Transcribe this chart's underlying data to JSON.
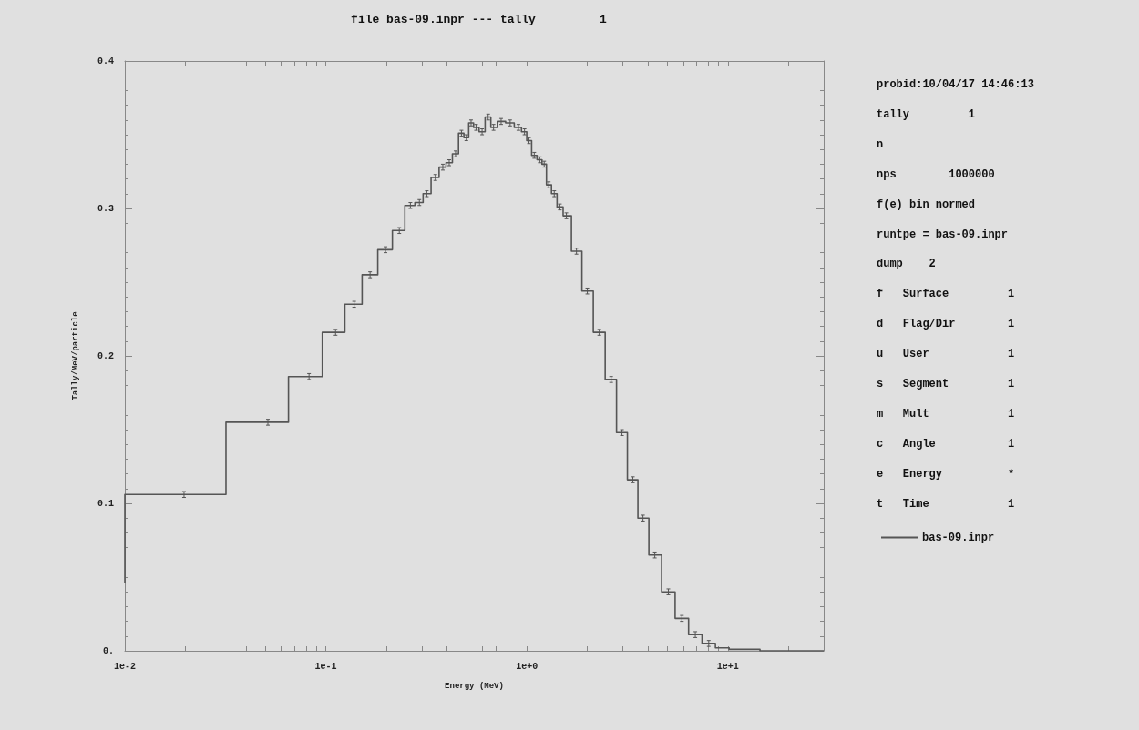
{
  "chart_data": {
    "type": "step",
    "title": "file bas-09.inpr --- tally         1",
    "xlabel": "Energy (MeV)",
    "ylabel": "Tally/MeV/particle",
    "log": "x",
    "legend": "right",
    "marker": "none",
    "line_style": "solid",
    "xlim": [
      0.01,
      30
    ],
    "xticks": [
      {
        "value": 0.01,
        "label": "1e-2"
      },
      {
        "value": 0.02,
        "label": null
      },
      {
        "value": 0.03,
        "label": null
      },
      {
        "value": 0.04,
        "label": null
      },
      {
        "value": 0.05,
        "label": null
      },
      {
        "value": 0.06,
        "label": null
      },
      {
        "value": 0.07,
        "label": null
      },
      {
        "value": 0.08,
        "label": null
      },
      {
        "value": 0.09,
        "label": null
      },
      {
        "value": 0.1,
        "label": "1e-1"
      },
      {
        "value": 0.2,
        "label": null
      },
      {
        "value": 0.3,
        "label": null
      },
      {
        "value": 0.4,
        "label": null
      },
      {
        "value": 0.5,
        "label": null
      },
      {
        "value": 0.6,
        "label": null
      },
      {
        "value": 0.7,
        "label": null
      },
      {
        "value": 0.8,
        "label": null
      },
      {
        "value": 0.9,
        "label": null
      },
      {
        "value": 1,
        "label": "1e+0"
      },
      {
        "value": 2,
        "label": null
      },
      {
        "value": 3,
        "label": null
      },
      {
        "value": 4,
        "label": null
      },
      {
        "value": 5,
        "label": null
      },
      {
        "value": 6,
        "label": null
      },
      {
        "value": 7,
        "label": null
      },
      {
        "value": 8,
        "label": null
      },
      {
        "value": 9,
        "label": null
      },
      {
        "value": 10,
        "label": "1e+1"
      },
      {
        "value": 20,
        "label": null
      }
    ],
    "ylim": [
      0,
      0.4
    ],
    "yticks": [
      {
        "value": 0,
        "label": "0."
      },
      0.1,
      0.2,
      0.3,
      0.4
    ],
    "series": [
      {
        "name": "bas-09.inpr",
        "color": "#555555",
        "x": [
          0.01,
          0.01,
          0.0197,
          0.0515,
          0.0825,
          0.1118,
          0.1383,
          0.166,
          0.198,
          0.232,
          0.2635,
          0.292,
          0.318,
          0.3505,
          0.382,
          0.411,
          0.442,
          0.473,
          0.5,
          0.528,
          0.559,
          0.599,
          0.642,
          0.683,
          0.745,
          0.826,
          0.908,
          0.974,
          1.025,
          1.089,
          1.16,
          1.22,
          1.285,
          1.369,
          1.46,
          1.573,
          1.766,
          2.0,
          2.293,
          2.626,
          2.973,
          3.369,
          3.783,
          4.332,
          5.06,
          5.907,
          6.89,
          8.036,
          9.363,
          11.01,
          18.97,
          30
        ],
        "values": [
          0.046,
          0.106,
          0.106,
          0.155,
          0.186,
          0.216,
          0.235,
          0.255,
          0.272,
          0.285,
          0.302,
          0.304,
          0.31,
          0.321,
          0.328,
          0.331,
          0.337,
          0.351,
          0.348,
          0.358,
          0.355,
          0.352,
          0.362,
          0.355,
          0.359,
          0.358,
          0.355,
          0.352,
          0.346,
          0.336,
          0.333,
          0.33,
          0.316,
          0.31,
          0.301,
          0.295,
          0.271,
          0.244,
          0.216,
          0.184,
          0.148,
          0.116,
          0.09,
          0.065,
          0.04,
          0.022,
          0.011,
          0.005,
          0.002,
          0.001,
          0,
          0
        ],
        "errors": [
          null,
          null,
          0.002,
          0.002,
          0.002,
          0.002,
          0.002,
          0.002,
          0.002,
          0.002,
          0.002,
          0.002,
          0.002,
          0.002,
          0.002,
          0.002,
          0.002,
          0.002,
          0.002,
          0.002,
          0.002,
          0.002,
          0.002,
          0.002,
          0.002,
          0.002,
          0.002,
          0.002,
          0.002,
          0.002,
          0.002,
          0.002,
          0.002,
          0.002,
          0.002,
          0.002,
          0.002,
          0.002,
          0.002,
          0.002,
          0.002,
          0.002,
          0.002,
          0.002,
          0.002,
          0.002,
          0.002,
          0.002,
          null,
          null,
          null,
          null
        ]
      }
    ],
    "annotations": [
      "probid:10/04/17 14:46:13",
      "tally         1",
      "n",
      "nps        1000000",
      "f(e) bin normed",
      "runtpe = bas-09.inpr",
      "dump    2",
      "f   Surface         1",
      "d   Flag/Dir        1",
      "u   User            1",
      "s   Segment         1",
      "m   Mult            1",
      "c   Angle           1",
      "e   Energy          *",
      "t   Time            1"
    ]
  }
}
